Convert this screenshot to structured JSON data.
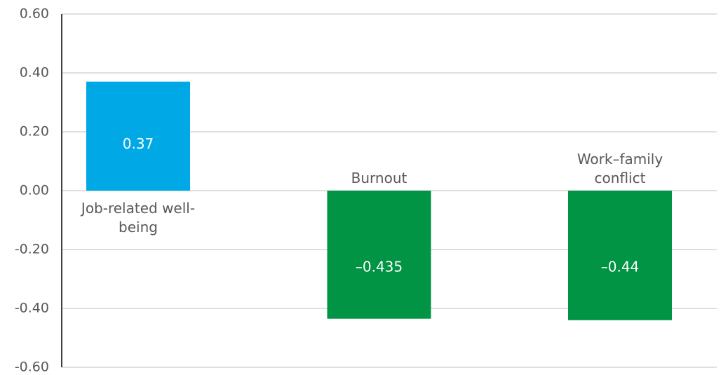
{
  "chart_data": {
    "type": "bar",
    "categories": [
      "Job-related well-being",
      "Burnout",
      "Work–family conflict"
    ],
    "values": [
      0.37,
      -0.435,
      -0.44
    ],
    "value_labels": [
      "0.37",
      "–0.435",
      "–0.44"
    ],
    "colors": [
      "#00a9e6",
      "#009444",
      "#009444"
    ],
    "ylim": [
      -0.6,
      0.6
    ],
    "yticks": [
      {
        "value": -0.6,
        "label": "-0.60"
      },
      {
        "value": -0.4,
        "label": "-0.40"
      },
      {
        "value": -0.2,
        "label": "-0.20"
      },
      {
        "value": 0,
        "label": "0.00"
      },
      {
        "value": 0.2,
        "label": "0.20"
      },
      {
        "value": 0.4,
        "label": "0.40"
      },
      {
        "value": 0.6,
        "label": "0.60"
      }
    ],
    "grid": true
  }
}
